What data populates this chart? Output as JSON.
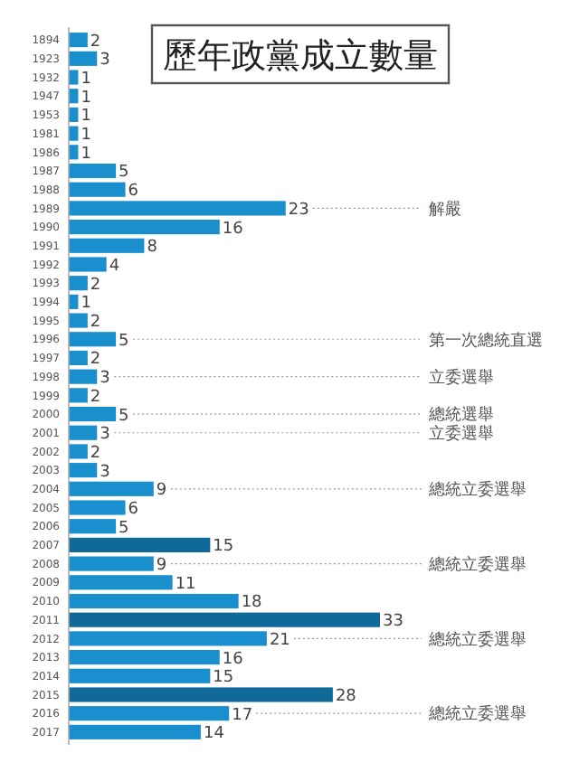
{
  "chart_data": {
    "type": "bar",
    "orientation": "horizontal",
    "title": "歷年政黨成立數量",
    "categories": [
      "1894",
      "1923",
      "1932",
      "1947",
      "1953",
      "1981",
      "1986",
      "1987",
      "1988",
      "1989",
      "1990",
      "1991",
      "1992",
      "1993",
      "1994",
      "1995",
      "1996",
      "1997",
      "1998",
      "1999",
      "2000",
      "2001",
      "2002",
      "2003",
      "2004",
      "2005",
      "2006",
      "2007",
      "2008",
      "2009",
      "2010",
      "2011",
      "2012",
      "2013",
      "2014",
      "2015",
      "2016",
      "2017"
    ],
    "values": [
      2,
      3,
      1,
      1,
      1,
      1,
      1,
      5,
      6,
      23,
      16,
      8,
      4,
      2,
      1,
      2,
      5,
      2,
      3,
      2,
      5,
      3,
      2,
      3,
      9,
      6,
      5,
      15,
      9,
      11,
      18,
      33,
      21,
      16,
      15,
      28,
      17,
      14
    ],
    "colors": [
      "#1a8fce",
      "#1a8fce",
      "#1a8fce",
      "#1a8fce",
      "#1a8fce",
      "#1a8fce",
      "#1a8fce",
      "#1a8fce",
      "#1a8fce",
      "#1a8fce",
      "#1a8fce",
      "#1a8fce",
      "#1a8fce",
      "#1a8fce",
      "#1a8fce",
      "#1a8fce",
      "#1a8fce",
      "#1a8fce",
      "#1a8fce",
      "#1a8fce",
      "#1a8fce",
      "#1a8fce",
      "#1a8fce",
      "#1a8fce",
      "#1a8fce",
      "#1a8fce",
      "#1a8fce",
      "#0f6a9a",
      "#1a8fce",
      "#1a8fce",
      "#1a8fce",
      "#0f6a9a",
      "#1a8fce",
      "#1a8fce",
      "#1a8fce",
      "#0f6a9a",
      "#1a8fce",
      "#1a8fce"
    ],
    "data_labels": true,
    "ref_lines": [
      {
        "axis": "y",
        "value": "1989",
        "label": "解嚴",
        "line_style": "dotted",
        "color": "#999999"
      },
      {
        "axis": "y",
        "value": "1996",
        "label": "第一次總統直選",
        "line_style": "dotted",
        "color": "#999999"
      },
      {
        "axis": "y",
        "value": "1998",
        "label": "立委選舉",
        "line_style": "dotted",
        "color": "#999999"
      },
      {
        "axis": "y",
        "value": "2000",
        "label": "總統選舉",
        "line_style": "dotted",
        "color": "#999999"
      },
      {
        "axis": "y",
        "value": "2001",
        "label": "立委選舉",
        "line_style": "dotted",
        "color": "#999999"
      },
      {
        "axis": "y",
        "value": "2004",
        "label": "總統立委選舉",
        "line_style": "dotted",
        "color": "#999999"
      },
      {
        "axis": "y",
        "value": "2008",
        "label": "總統立委選舉",
        "line_style": "dotted",
        "color": "#999999"
      },
      {
        "axis": "y",
        "value": "2012",
        "label": "總統立委選舉",
        "line_style": "dotted",
        "color": "#999999"
      },
      {
        "axis": "y",
        "value": "2016",
        "label": "總統立委選舉",
        "line_style": "dotted",
        "color": "#999999"
      }
    ]
  }
}
